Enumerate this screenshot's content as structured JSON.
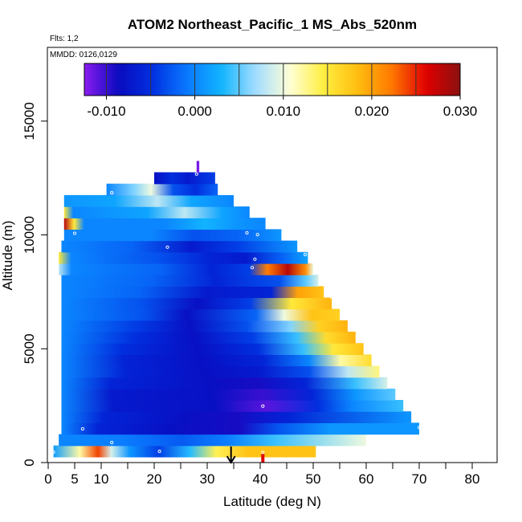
{
  "chart_data": {
    "type": "heatmap",
    "title": "ATOM2 Northeast_Pacific_1 MS_Abs_520nm",
    "flights_note": "Flts: 1,2",
    "dates_note": "MMDD: 0126,0129",
    "xlabel": "Latitude (deg N)",
    "ylabel": "Altitude (m)",
    "xlim": [
      0,
      85
    ],
    "ylim": [
      0,
      17600
    ],
    "x_ticks": [
      0,
      5,
      10,
      20,
      30,
      40,
      50,
      60,
      70,
      80
    ],
    "x_minor_ticks": [
      15,
      25,
      35,
      45,
      55,
      65,
      75,
      85
    ],
    "y_ticks": [
      0,
      5000,
      10000,
      15000
    ],
    "colorbar": {
      "min": -0.0125,
      "max": 0.03,
      "ticks": [
        -0.01,
        0.0,
        0.01,
        0.02,
        0.03
      ],
      "tick_labels": [
        "-0.010",
        "0.000",
        "0.010",
        "0.020",
        "0.030"
      ],
      "stops": [
        "#8a1cf0",
        "#0a0abf",
        "#0030e0",
        "#0a78ff",
        "#10b4ff",
        "#a0dcff",
        "#ffffd8",
        "#ffee40",
        "#ffbe10",
        "#ff7800",
        "#e00000",
        "#8a1010"
      ],
      "bin_edges": [
        -0.01,
        -0.005,
        0.0,
        0.005,
        0.01,
        0.015,
        0.02,
        0.025
      ]
    },
    "arrow_latitude": 34.5,
    "rows": [
      {
        "alt": 500,
        "start": 1,
        "end": 50.5,
        "stops": [
          [
            0,
            0.0015
          ],
          [
            0.1,
            0.012
          ],
          [
            0.17,
            0.024
          ],
          [
            0.22,
            0.009
          ],
          [
            0.29,
            0.001
          ],
          [
            0.4,
            -0.004
          ],
          [
            0.52,
            0.0035
          ],
          [
            0.62,
            0.014
          ],
          [
            0.74,
            0.018
          ],
          [
            1,
            0.018
          ]
        ]
      },
      {
        "alt": 1000,
        "start": 2,
        "end": 60,
        "stops": [
          [
            0,
            0.0
          ],
          [
            0.2,
            -0.0005
          ],
          [
            0.4,
            -0.0025
          ],
          [
            0.55,
            -0.0005
          ],
          [
            0.7,
            0.004
          ],
          [
            1,
            0.01
          ]
        ]
      },
      {
        "alt": 1500,
        "start": 2.5,
        "end": 70,
        "stops": [
          [
            0,
            0.0
          ],
          [
            0.1,
            -0.006
          ],
          [
            0.3,
            -0.008
          ],
          [
            0.5,
            -0.009
          ],
          [
            0.6,
            -0.003
          ],
          [
            0.75,
            0.001
          ],
          [
            1,
            0.001
          ]
        ]
      },
      {
        "alt": 2000,
        "start": 2.5,
        "end": 68.5,
        "stops": [
          [
            0,
            0.0
          ],
          [
            0.12,
            -0.006
          ],
          [
            0.35,
            -0.008
          ],
          [
            0.5,
            -0.009
          ],
          [
            0.65,
            -0.006
          ],
          [
            1,
            0.001
          ]
        ]
      },
      {
        "alt": 2500,
        "start": 2.5,
        "end": 67,
        "stops": [
          [
            0,
            0.0
          ],
          [
            0.15,
            -0.007
          ],
          [
            0.45,
            -0.008
          ],
          [
            0.6,
            -0.011
          ],
          [
            0.75,
            -0.005
          ],
          [
            0.85,
            0.0
          ],
          [
            1,
            0.004
          ]
        ]
      },
      {
        "alt": 3000,
        "start": 2.5,
        "end": 65.5,
        "stops": [
          [
            0,
            0.0
          ],
          [
            0.15,
            -0.007
          ],
          [
            0.45,
            -0.008
          ],
          [
            0.6,
            -0.01
          ],
          [
            0.75,
            -0.006
          ],
          [
            0.88,
            0.001
          ],
          [
            1,
            0.005
          ]
        ]
      },
      {
        "alt": 3500,
        "start": 2.5,
        "end": 64,
        "stops": [
          [
            0,
            0.0
          ],
          [
            0.15,
            -0.006
          ],
          [
            0.45,
            -0.008
          ],
          [
            0.6,
            -0.009
          ],
          [
            0.75,
            -0.006
          ],
          [
            0.9,
            0.004
          ],
          [
            1,
            0.009
          ]
        ]
      },
      {
        "alt": 4000,
        "start": 2.5,
        "end": 62.5,
        "stops": [
          [
            0,
            0.0
          ],
          [
            0.2,
            -0.006
          ],
          [
            0.45,
            -0.008
          ],
          [
            0.62,
            -0.007
          ],
          [
            0.78,
            -0.003
          ],
          [
            0.9,
            0.008
          ],
          [
            1,
            0.013
          ]
        ]
      },
      {
        "alt": 4500,
        "start": 2.5,
        "end": 61,
        "stops": [
          [
            0,
            0.0
          ],
          [
            0.2,
            -0.006
          ],
          [
            0.45,
            -0.008
          ],
          [
            0.65,
            -0.006
          ],
          [
            0.8,
            0.0
          ],
          [
            0.9,
            0.012
          ],
          [
            1,
            0.016
          ]
        ]
      },
      {
        "alt": 5000,
        "start": 2.5,
        "end": 59.5,
        "stops": [
          [
            0,
            0.0
          ],
          [
            0.2,
            -0.005
          ],
          [
            0.45,
            -0.008
          ],
          [
            0.65,
            -0.005
          ],
          [
            0.8,
            0.004
          ],
          [
            0.9,
            0.015
          ],
          [
            1,
            0.018
          ]
        ]
      },
      {
        "alt": 5500,
        "start": 2.5,
        "end": 58,
        "stops": [
          [
            0,
            0.0
          ],
          [
            0.25,
            -0.005
          ],
          [
            0.45,
            -0.008
          ],
          [
            0.65,
            -0.004
          ],
          [
            0.8,
            0.004
          ],
          [
            0.9,
            0.016
          ],
          [
            1,
            0.019
          ]
        ]
      },
      {
        "alt": 6000,
        "start": 2.5,
        "end": 56.5,
        "stops": [
          [
            0,
            0.0
          ],
          [
            0.25,
            -0.004
          ],
          [
            0.45,
            -0.008
          ],
          [
            0.65,
            -0.003
          ],
          [
            0.8,
            0.006
          ],
          [
            0.9,
            0.017
          ],
          [
            1,
            0.019
          ]
        ]
      },
      {
        "alt": 6500,
        "start": 2.5,
        "end": 55,
        "stops": [
          [
            0,
            0.0
          ],
          [
            0.3,
            -0.003
          ],
          [
            0.45,
            -0.008
          ],
          [
            0.7,
            -0.002
          ],
          [
            0.8,
            0.01
          ],
          [
            0.9,
            0.018
          ],
          [
            1,
            0.017
          ]
        ]
      },
      {
        "alt": 7000,
        "start": 2.5,
        "end": 53.5,
        "stops": [
          [
            0,
            0.0
          ],
          [
            0.3,
            -0.003
          ],
          [
            0.5,
            -0.008
          ],
          [
            0.7,
            -0.004
          ],
          [
            0.85,
            0.015
          ],
          [
            1,
            0.019
          ]
        ]
      },
      {
        "alt": 7500,
        "start": 2.5,
        "end": 52,
        "stops": [
          [
            0,
            0.0
          ],
          [
            0.3,
            -0.002
          ],
          [
            0.55,
            -0.007
          ],
          [
            0.8,
            -0.006
          ],
          [
            0.9,
            0.02
          ],
          [
            1,
            0.018
          ]
        ]
      },
      {
        "alt": 8000,
        "start": 2.5,
        "end": 51,
        "stops": [
          [
            0,
            0.0
          ],
          [
            0.35,
            -0.002
          ],
          [
            0.6,
            -0.006
          ],
          [
            0.85,
            -0.003
          ],
          [
            0.95,
            0.005
          ],
          [
            1,
            0.009
          ]
        ]
      },
      {
        "alt": 8500,
        "start": 2,
        "end": 50,
        "stops": [
          [
            0,
            0.008
          ],
          [
            0.05,
            0.0
          ],
          [
            0.4,
            -0.002
          ],
          [
            0.6,
            -0.006
          ],
          [
            0.75,
            -0.004
          ],
          [
            0.82,
            0.022
          ],
          [
            0.9,
            0.028
          ],
          [
            0.97,
            0.021
          ],
          [
            1,
            0.01
          ]
        ]
      },
      {
        "alt": 9000,
        "start": 2,
        "end": 49,
        "stops": [
          [
            0,
            0.015
          ],
          [
            0.05,
            0.0
          ],
          [
            0.4,
            -0.003
          ],
          [
            0.6,
            -0.006
          ],
          [
            0.75,
            -0.007
          ],
          [
            0.9,
            -0.002
          ],
          [
            1,
            0.002
          ]
        ]
      },
      {
        "alt": 9500,
        "start": 2.5,
        "end": 47,
        "stops": [
          [
            0,
            0.0
          ],
          [
            0.3,
            -0.002
          ],
          [
            0.55,
            -0.007
          ],
          [
            0.75,
            -0.004
          ],
          [
            1,
            0.001
          ]
        ]
      },
      {
        "alt": 10000,
        "start": 3,
        "end": 44,
        "stops": [
          [
            0,
            0.0
          ],
          [
            0.4,
            0.0
          ],
          [
            0.6,
            -0.003
          ],
          [
            0.8,
            -0.002
          ],
          [
            1,
            0.001
          ]
        ]
      },
      {
        "alt": 10500,
        "start": 3,
        "end": 41,
        "stops": [
          [
            0,
            0.028
          ],
          [
            0.05,
            0.015
          ],
          [
            0.1,
            0.0
          ],
          [
            0.5,
            0.0
          ],
          [
            0.7,
            0.003
          ],
          [
            0.85,
            0.001
          ],
          [
            1,
            0.0
          ]
        ]
      },
      {
        "alt": 11000,
        "start": 3,
        "end": 38,
        "stops": [
          [
            0,
            0.015
          ],
          [
            0.05,
            0.0
          ],
          [
            0.45,
            0.002
          ],
          [
            0.65,
            0.008
          ],
          [
            0.85,
            0.002
          ],
          [
            1,
            0.0
          ]
        ]
      },
      {
        "alt": 11500,
        "start": 3,
        "end": 35,
        "stops": [
          [
            0,
            0.001
          ],
          [
            0.3,
            0.002
          ],
          [
            0.55,
            0.008
          ],
          [
            0.75,
            0.002
          ],
          [
            1,
            0.0
          ]
        ]
      },
      {
        "alt": 12000,
        "start": 11,
        "end": 32,
        "stops": [
          [
            0,
            0.0
          ],
          [
            0.25,
            0.006
          ],
          [
            0.4,
            0.01
          ],
          [
            0.6,
            -0.003
          ],
          [
            0.8,
            -0.005
          ],
          [
            1,
            -0.002
          ]
        ]
      },
      {
        "alt": 12500,
        "start": 20,
        "end": 31.5,
        "stops": [
          [
            0,
            -0.008
          ],
          [
            0.3,
            -0.005
          ],
          [
            0.55,
            -0.007
          ],
          [
            1,
            -0.004
          ]
        ]
      },
      {
        "alt": 13000,
        "start": 28,
        "end": 28.5,
        "stops": [
          [
            0,
            -0.012
          ],
          [
            1,
            -0.012
          ]
        ]
      }
    ],
    "points": [
      [
        1,
        460
      ],
      [
        12,
        880
      ],
      [
        21,
        490
      ],
      [
        40.5,
        440
      ],
      [
        6.5,
        1480
      ],
      [
        70,
        1540
      ],
      [
        40.5,
        2480
      ],
      [
        53,
        7780
      ],
      [
        53.5,
        7260
      ],
      [
        48.5,
        9140
      ],
      [
        38.5,
        8560
      ],
      [
        39,
        8930
      ],
      [
        22.5,
        9460
      ],
      [
        5,
        10070
      ],
      [
        37.5,
        10090
      ],
      [
        39.5,
        10010
      ],
      [
        2.5,
        10830
      ],
      [
        12,
        11850
      ],
      [
        28,
        12670
      ]
    ]
  }
}
